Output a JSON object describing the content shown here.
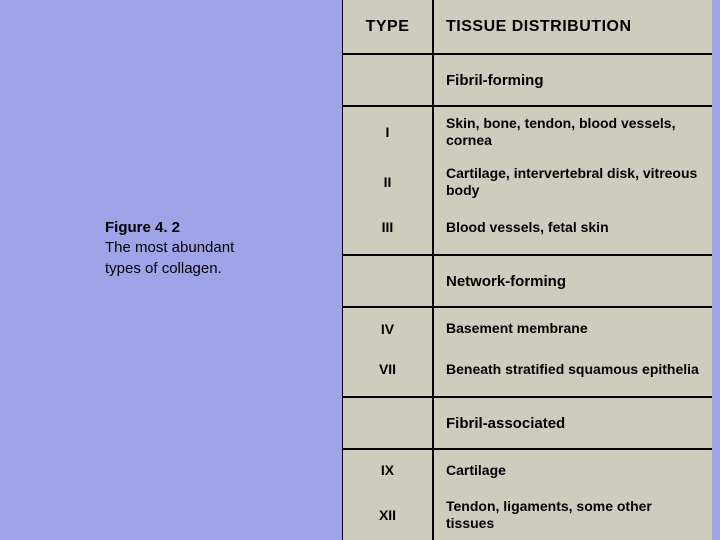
{
  "page": {
    "background_color": "#9fa4e8",
    "panel_color": "#cdccbd",
    "text_color": "#000000"
  },
  "caption": {
    "title": "Figure 4. 2",
    "line1": "The most abundant",
    "line2": "types of collagen."
  },
  "table": {
    "header": {
      "col1": "TYPE",
      "col2": "TISSUE DISTRIBUTION"
    },
    "sections": [
      {
        "label": "Fibril-forming",
        "rows": [
          {
            "type": "I",
            "dist": "Skin, bone, tendon, blood vessels, cornea"
          },
          {
            "type": "II",
            "dist": "Cartilage, intervertebral disk, vitreous body"
          },
          {
            "type": "III",
            "dist": "Blood vessels, fetal skin"
          }
        ]
      },
      {
        "label": "Network-forming",
        "rows": [
          {
            "type": "IV",
            "dist": "Basement membrane"
          },
          {
            "type": "VII",
            "dist": "Beneath stratified squamous epithelia"
          }
        ]
      },
      {
        "label": "Fibril-associated",
        "rows": [
          {
            "type": "IX",
            "dist": "Cartilage"
          },
          {
            "type": "XII",
            "dist": "Tendon, ligaments, some other tissues"
          }
        ]
      }
    ]
  }
}
